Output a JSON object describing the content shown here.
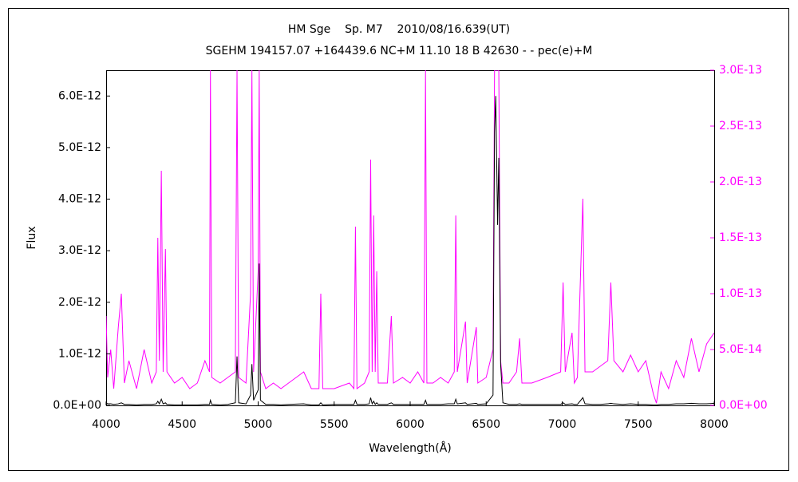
{
  "chart_data": {
    "type": "line",
    "title": "HM Sge    Sp. M7    2010/08/16.639(UT)",
    "subtitle": "SGEHM 194157.07 +164439.6 NC+M 11.10 18 B 42630 - - pec(e)+M",
    "xlabel": "Wavelength(Å)",
    "ylabel": "Flux",
    "xlim": [
      4000,
      8000
    ],
    "xticks": [
      4000,
      4500,
      5000,
      5500,
      6000,
      6500,
      7000,
      7500,
      8000
    ],
    "ylim": [
      0,
      6.5e-12
    ],
    "yticks": [
      {
        "value": 0,
        "label": "0.0E+00"
      },
      {
        "value": 1e-12,
        "label": "1.0E-12"
      },
      {
        "value": 2e-12,
        "label": "2.0E-12"
      },
      {
        "value": 3e-12,
        "label": "3.0E-12"
      },
      {
        "value": 4e-12,
        "label": "4.0E-12"
      },
      {
        "value": 5e-12,
        "label": "5.0E-12"
      },
      {
        "value": 6e-12,
        "label": "6.0E-12"
      }
    ],
    "y2lim": [
      0,
      3e-13
    ],
    "y2ticks": [
      {
        "value": 0,
        "label": "0.0E+00"
      },
      {
        "value": 5e-14,
        "label": "5.0E-14"
      },
      {
        "value": 1e-13,
        "label": "1.0E-13"
      },
      {
        "value": 1.5e-13,
        "label": "1.5E-13"
      },
      {
        "value": 2e-13,
        "label": "2.0E-13"
      },
      {
        "value": 2.5e-13,
        "label": "2.5E-13"
      },
      {
        "value": 3e-13,
        "label": "3.0E-13"
      }
    ],
    "x": [
      4000,
      4010,
      4030,
      4050,
      4080,
      4100,
      4120,
      4150,
      4200,
      4250,
      4300,
      4330,
      4340,
      4350,
      4363,
      4375,
      4390,
      4400,
      4450,
      4500,
      4550,
      4600,
      4650,
      4680,
      4686,
      4695,
      4750,
      4800,
      4850,
      4861,
      4872,
      4920,
      4950,
      4959,
      4970,
      5000,
      5007,
      5015,
      5050,
      5100,
      5150,
      5200,
      5300,
      5350,
      5400,
      5412,
      5425,
      5500,
      5600,
      5630,
      5640,
      5650,
      5700,
      5730,
      5740,
      5750,
      5760,
      5770,
      5780,
      5790,
      5850,
      5876,
      5890,
      5950,
      6000,
      6050,
      6090,
      6101,
      6110,
      6150,
      6200,
      6250,
      6290,
      6300,
      6310,
      6364,
      6375,
      6435,
      6445,
      6500,
      6545,
      6555,
      6563,
      6575,
      6583,
      6595,
      6610,
      6650,
      6700,
      6720,
      6735,
      6800,
      6900,
      6990,
      7006,
      7020,
      7065,
      7080,
      7100,
      7136,
      7150,
      7200,
      7250,
      7300,
      7320,
      7340,
      7400,
      7450,
      7500,
      7550,
      7600,
      7620,
      7650,
      7700,
      7750,
      7800,
      7850,
      7900,
      7950,
      8000
    ],
    "series": [
      {
        "color": "#ff00ff",
        "axis": "y2",
        "values": [
          8e-14,
          2.5e-14,
          5e-14,
          1.5e-14,
          7e-14,
          1e-13,
          2e-14,
          4e-14,
          1.5e-14,
          5e-14,
          2e-14,
          3e-14,
          1.5e-13,
          4e-14,
          2.1e-13,
          3e-14,
          1.4e-13,
          3e-14,
          2e-14,
          2.5e-14,
          1.5e-14,
          2e-14,
          4e-14,
          3e-14,
          3e-13,
          2.5e-14,
          2e-14,
          2.5e-14,
          3e-14,
          3e-13,
          2.5e-14,
          2e-14,
          1e-13,
          3e-13,
          3e-14,
          1.2e-13,
          3e-13,
          3e-14,
          1.5e-14,
          2e-14,
          1.5e-14,
          2e-14,
          3e-14,
          1.5e-14,
          1.5e-14,
          1e-13,
          1.5e-14,
          1.5e-14,
          2e-14,
          1.5e-14,
          1.6e-13,
          1.5e-14,
          2e-14,
          3e-14,
          2.2e-13,
          3e-14,
          1.7e-13,
          3e-14,
          1.2e-13,
          2e-14,
          2e-14,
          8e-14,
          2e-14,
          2.5e-14,
          2e-14,
          3e-14,
          2e-14,
          3e-13,
          2e-14,
          2e-14,
          2.5e-14,
          2e-14,
          3e-14,
          1.7e-13,
          3e-14,
          7.5e-14,
          2e-14,
          7e-14,
          2e-14,
          2.5e-14,
          5e-14,
          3e-13,
          3e-13,
          3e-13,
          3e-13,
          4e-14,
          2e-14,
          2e-14,
          3e-14,
          6e-14,
          2e-14,
          2e-14,
          2.5e-14,
          3e-14,
          1.1e-13,
          3e-14,
          6.5e-14,
          2e-14,
          2.5e-14,
          1.85e-13,
          3e-14,
          3e-14,
          3.5e-14,
          4e-14,
          1.1e-13,
          4e-14,
          3e-14,
          4.5e-14,
          3e-14,
          4e-14,
          1e-14,
          2e-15,
          3e-14,
          1.5e-14,
          4e-14,
          2.5e-14,
          6e-14,
          3e-14,
          5.5e-14,
          6.5e-14
        ]
      },
      {
        "color": "#000000",
        "values": [
          5e-14,
          3e-14,
          3e-14,
          2e-14,
          3e-14,
          5e-14,
          2e-14,
          2e-14,
          1e-14,
          2e-14,
          2e-14,
          3e-14,
          8e-14,
          3e-14,
          1.2e-13,
          3e-14,
          5e-14,
          2e-14,
          1e-14,
          1e-14,
          1e-14,
          1e-14,
          2e-14,
          2e-14,
          1e-13,
          2e-14,
          1e-14,
          2e-14,
          5e-14,
          9.5e-13,
          5e-14,
          3e-14,
          2e-13,
          8e-13,
          1e-13,
          3e-13,
          2.75e-12,
          1e-13,
          2e-14,
          2e-14,
          1e-14,
          2e-14,
          3e-14,
          1e-14,
          1e-14,
          5e-14,
          1e-14,
          2e-14,
          2e-14,
          2e-14,
          1e-13,
          2e-14,
          2e-14,
          3e-14,
          1.5e-13,
          3e-14,
          8e-14,
          2e-14,
          5e-14,
          2e-14,
          2e-14,
          5e-14,
          2e-14,
          2e-14,
          2e-14,
          2e-14,
          2e-14,
          1e-13,
          2e-14,
          2e-14,
          2e-14,
          3e-14,
          3e-14,
          1.2e-13,
          3e-14,
          5e-14,
          2e-14,
          4e-14,
          2e-14,
          3e-14,
          2e-13,
          5.3e-12,
          6e-12,
          3.5e-12,
          4.8e-12,
          8e-13,
          5e-14,
          2e-14,
          2e-14,
          3e-14,
          2e-14,
          2e-14,
          2e-14,
          2e-14,
          5e-14,
          2e-14,
          3e-14,
          2e-14,
          2e-14,
          1.5e-13,
          3e-14,
          2e-14,
          2e-14,
          3e-14,
          4e-14,
          3e-14,
          2e-14,
          3e-14,
          2e-14,
          2e-14,
          1e-14,
          1e-14,
          2e-14,
          2e-14,
          3e-14,
          3e-14,
          4e-14,
          3e-14,
          3e-14,
          4e-14
        ]
      }
    ]
  }
}
